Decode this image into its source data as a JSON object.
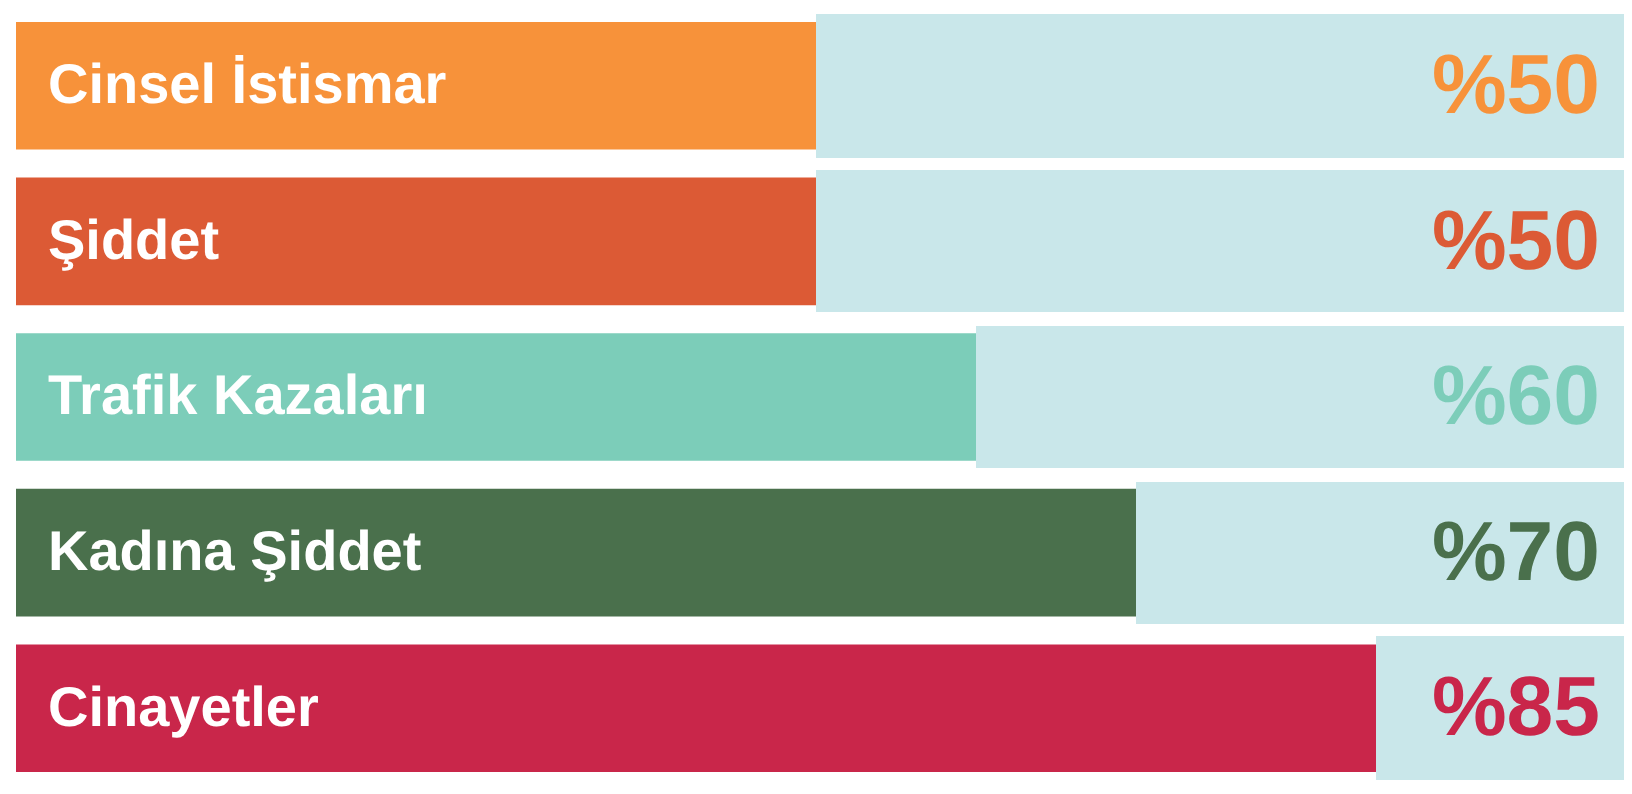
{
  "chart_data": {
    "type": "bar",
    "orientation": "horizontal",
    "categories": [
      "Cinsel İstismar",
      "Şiddet",
      "Trafik Kazaları",
      "Kadına Şiddet",
      "Cinayetler"
    ],
    "values": [
      50,
      50,
      60,
      70,
      85
    ],
    "colors": [
      "#f7923a",
      "#dc5a35",
      "#7ccdb9",
      "#4a704c",
      "#c9264a"
    ],
    "value_labels": [
      "%50",
      "%50",
      "%60",
      "%70",
      "%85"
    ],
    "xlim": [
      0,
      100
    ],
    "legend": false
  }
}
